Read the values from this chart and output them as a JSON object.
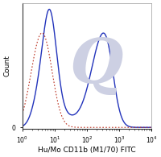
{
  "xlabel": "Hu/Mo CD11b (M1/70) FITC",
  "ylabel": "Count",
  "xlim": [
    1.0,
    10000
  ],
  "ylim": [
    -0.01,
    1.05
  ],
  "background_color": "#ffffff",
  "watermark_color": "#cdd0e3",
  "solid_line_color": "#2233bb",
  "dashed_line_color": "#bb3322",
  "xlabel_fontsize": 6.5,
  "ylabel_fontsize": 6.5,
  "tick_fontsize": 5.5,
  "border_color": "#880000"
}
